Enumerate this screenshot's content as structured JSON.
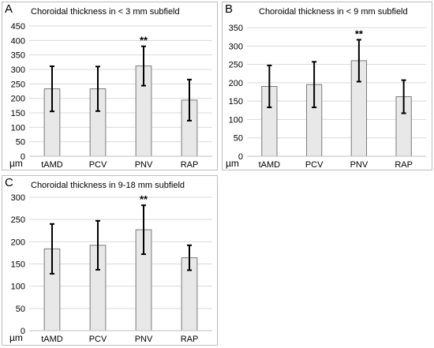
{
  "chart_data": [
    {
      "type": "bar",
      "panel_label": "A",
      "title": "Choroidal thickness in < 3 mm subfield",
      "ylabel": "µm",
      "categories": [
        "tAMD",
        "PCV",
        "PNV",
        "RAP"
      ],
      "values": [
        233,
        233,
        312,
        194
      ],
      "errors": [
        78,
        77,
        68,
        71
      ],
      "significance": [
        "",
        "",
        "**",
        ""
      ],
      "ylim": [
        0,
        450
      ],
      "yticks": [
        0,
        50,
        100,
        150,
        200,
        250,
        300,
        350,
        400,
        450
      ],
      "gridlines": true,
      "bar_color": "#e8e8e8"
    },
    {
      "type": "bar",
      "panel_label": "B",
      "title": "Choroidal thickness in < 9 mm subfield",
      "ylabel": "µm",
      "categories": [
        "tAMD",
        "PCV",
        "PNV",
        "RAP"
      ],
      "values": [
        190,
        195,
        260,
        162
      ],
      "errors": [
        57,
        62,
        57,
        45
      ],
      "significance": [
        "",
        "",
        "**",
        ""
      ],
      "ylim": [
        0,
        350
      ],
      "yticks": [
        0,
        50,
        100,
        150,
        200,
        250,
        300,
        350
      ],
      "gridlines": true,
      "bar_color": "#e8e8e8"
    },
    {
      "type": "bar",
      "panel_label": "C",
      "title": "Choroidal thickness in 9-18 mm subfield",
      "ylabel": "µm",
      "categories": [
        "tAMD",
        "PCV",
        "PNV",
        "RAP"
      ],
      "values": [
        184,
        192,
        227,
        164
      ],
      "errors": [
        56,
        55,
        55,
        28
      ],
      "significance": [
        "",
        "",
        "**",
        ""
      ],
      "ylim": [
        0,
        300
      ],
      "yticks": [
        0,
        50,
        100,
        150,
        200,
        250,
        300
      ],
      "gridlines": true,
      "bar_color": "#e8e8e8"
    }
  ]
}
